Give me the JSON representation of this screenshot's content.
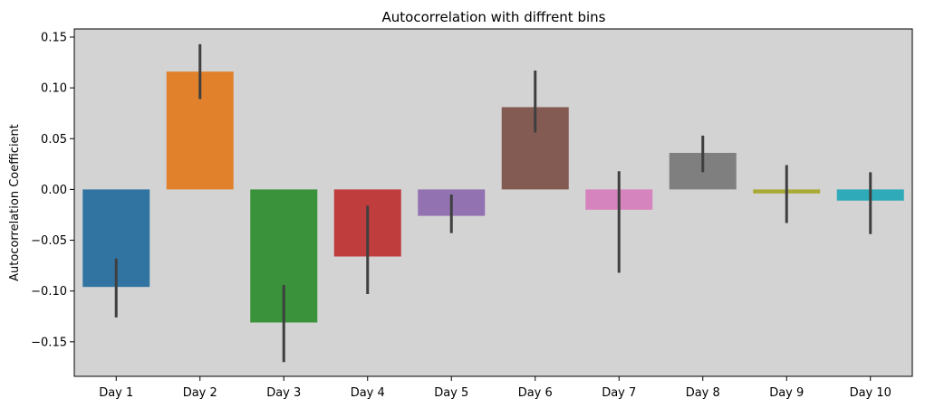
{
  "chart_data": {
    "type": "bar",
    "title": "Autocorrelation with diffrent bins",
    "xlabel": "",
    "ylabel": "Autocorrelation Coefficient",
    "categories": [
      "Day 1",
      "Day 2",
      "Day 3",
      "Day 4",
      "Day 5",
      "Day 6",
      "Day 7",
      "Day 8",
      "Day 9",
      "Day 10"
    ],
    "values": [
      -0.096,
      0.116,
      -0.131,
      -0.066,
      -0.026,
      0.081,
      -0.02,
      0.036,
      -0.004,
      -0.011
    ],
    "error_low": [
      -0.126,
      0.089,
      -0.17,
      -0.103,
      -0.043,
      0.056,
      -0.082,
      0.017,
      -0.033,
      -0.044
    ],
    "error_high": [
      -0.068,
      0.143,
      -0.094,
      -0.016,
      -0.005,
      0.117,
      0.018,
      0.053,
      0.024,
      0.017
    ],
    "colors": [
      "#3274a1",
      "#e1812c",
      "#3a923a",
      "#c03d3e",
      "#9372b2",
      "#845b53",
      "#d684bd",
      "#7f7f7f",
      "#a9aa35",
      "#2eaab8"
    ],
    "ylim": [
      -0.184,
      0.158
    ],
    "yticks": [
      0.15,
      0.1,
      0.05,
      0.0,
      -0.05,
      -0.1,
      -0.15
    ],
    "ytick_labels": [
      "0.15",
      "0.10",
      "0.05",
      "0.00",
      "−0.05",
      "−0.10",
      "−0.15"
    ],
    "grid": false,
    "background": "#d3d3d3"
  }
}
